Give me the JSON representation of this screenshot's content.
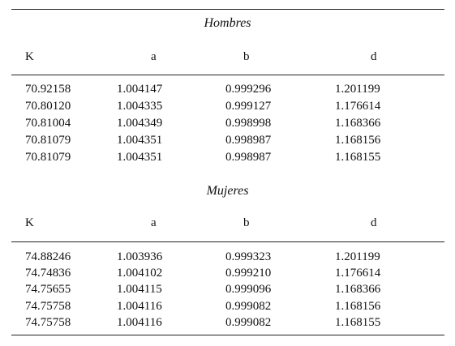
{
  "columns": [
    "K",
    "a",
    "b",
    "d"
  ],
  "sections": [
    {
      "title": "Hombres",
      "rows": [
        [
          "70.92158",
          "1.004147",
          "0.999296",
          "1.201199"
        ],
        [
          "70.80120",
          "1.004335",
          "0.999127",
          "1.176614"
        ],
        [
          "70.81004",
          "1.004349",
          "0.998998",
          "1.168366"
        ],
        [
          "70.81079",
          "1.004351",
          "0.998987",
          "1.168156"
        ],
        [
          "70.81079",
          "1.004351",
          "0.998987",
          "1.168155"
        ]
      ]
    },
    {
      "title": "Mujeres",
      "rows": [
        [
          "74.88246",
          "1.003936",
          "0.999323",
          "1.201199"
        ],
        [
          "74.74836",
          "1.004102",
          "0.999210",
          "1.176614"
        ],
        [
          "74.75655",
          "1.004115",
          "0.999096",
          "1.168366"
        ],
        [
          "74.75758",
          "1.004116",
          "0.999082",
          "1.168156"
        ],
        [
          "74.75758",
          "1.004116",
          "0.999082",
          "1.168155"
        ]
      ]
    }
  ]
}
